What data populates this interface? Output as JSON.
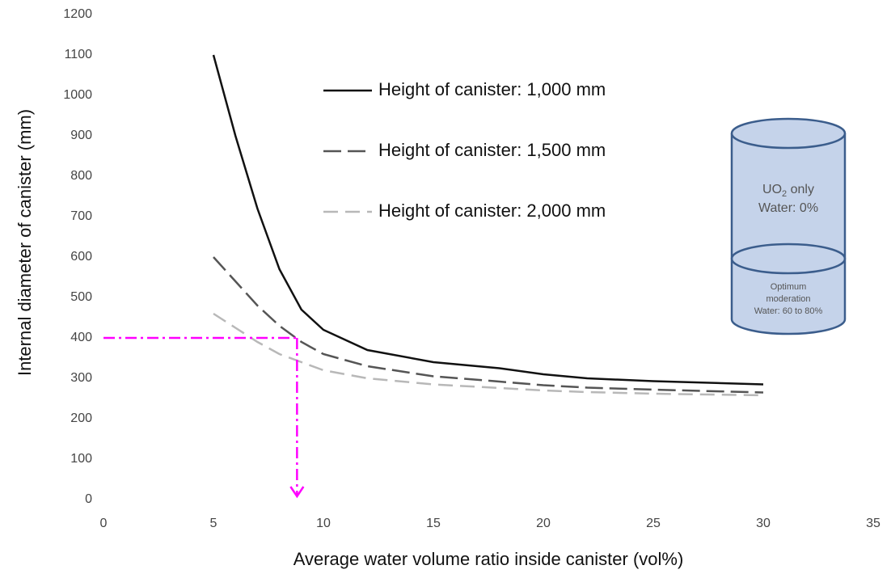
{
  "chart_data": {
    "type": "line",
    "xlabel": "Average water volume ratio inside canister (vol%)",
    "ylabel": "Internal diameter of canister (mm)",
    "x": [
      5,
      6,
      7,
      8,
      9,
      10,
      12,
      15,
      18,
      20,
      22,
      25,
      30
    ],
    "series": [
      {
        "name": "Height of canister: 1,000 mm",
        "color": "#111111",
        "dash": "none",
        "values": [
          1100,
          900,
          720,
          570,
          470,
          420,
          370,
          340,
          325,
          310,
          300,
          293,
          285
        ]
      },
      {
        "name": "Height of canister: 1,500 mm",
        "color": "#555555",
        "dash": "22 8",
        "values": [
          600,
          540,
          480,
          430,
          390,
          360,
          330,
          305,
          292,
          283,
          277,
          272,
          265
        ]
      },
      {
        "name": "Height of canister: 2,000 mm",
        "color": "#b8b8b8",
        "dash": "18 9",
        "values": [
          460,
          425,
          390,
          360,
          340,
          320,
          300,
          285,
          276,
          270,
          266,
          262,
          258
        ]
      }
    ],
    "xlim": [
      0,
      35
    ],
    "xticks": [
      0,
      5,
      10,
      15,
      20,
      25,
      30,
      35
    ],
    "ylim": [
      0,
      1200
    ],
    "yticks": [
      0,
      100,
      200,
      300,
      400,
      500,
      600,
      700,
      800,
      900,
      1000,
      1100,
      1200
    ],
    "grid": false,
    "reference": {
      "x": 8.8,
      "y": 400,
      "color": "#ff00ff"
    },
    "inset": {
      "top_main": "UO",
      "top_sub": "2",
      "top_end": " only",
      "top_line2": "Water: 0%",
      "bottom_line1": "Optimum",
      "bottom_line2": "moderation",
      "bottom_line3": "Water: 60 to 80%"
    }
  }
}
